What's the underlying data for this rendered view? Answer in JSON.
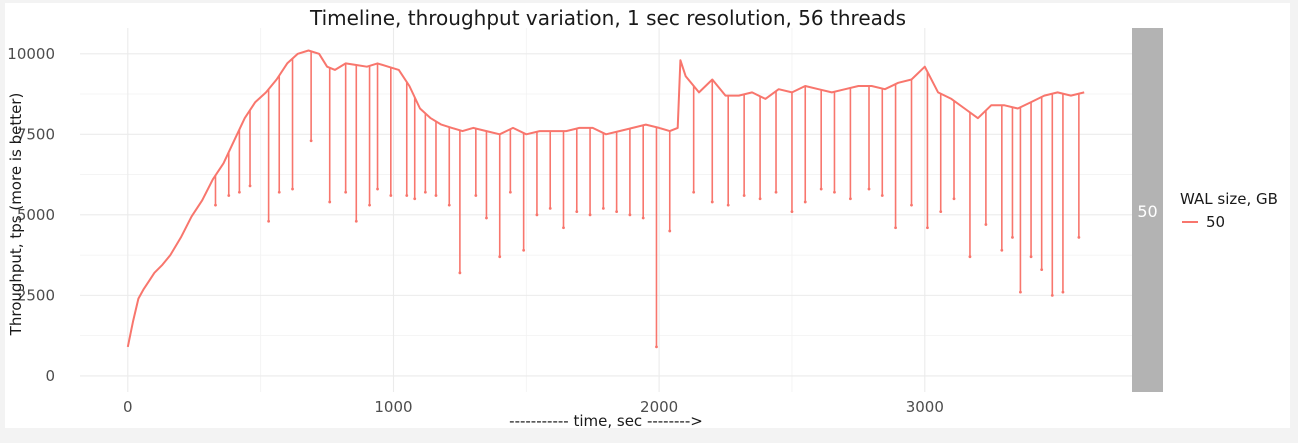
{
  "chart_data": {
    "type": "line",
    "title": "Timeline, throughput variation, 1 sec resolution, 56 threads",
    "xlabel": "----------- time, sec -------->",
    "ylabel": "Throughput, tps (more is better)",
    "xlim": [
      -180,
      3780
    ],
    "ylim": [
      -500,
      10800
    ],
    "x_ticks": [
      0,
      1000,
      2000,
      3000
    ],
    "x_tick_labels": [
      "0",
      "1000",
      "2000",
      "3000"
    ],
    "y_ticks": [
      0,
      2500,
      5000,
      7500,
      10000
    ],
    "y_tick_labels": [
      "0",
      "2500",
      "5000",
      "7500",
      "10000"
    ],
    "grid": true,
    "legend": {
      "title": "WAL size, GB",
      "position": "right",
      "entries": [
        "50"
      ]
    },
    "facet_label": "50",
    "color": "#f8766d",
    "series": [
      {
        "name": "50",
        "x": [
          0,
          20,
          40,
          60,
          80,
          100,
          130,
          160,
          200,
          240,
          280,
          320,
          360,
          400,
          440,
          480,
          520,
          560,
          600,
          640,
          680,
          720,
          750,
          780,
          820,
          860,
          900,
          940,
          980,
          1020,
          1060,
          1100,
          1140,
          1180,
          1220,
          1260,
          1300,
          1350,
          1400,
          1450,
          1500,
          1550,
          1600,
          1650,
          1700,
          1750,
          1800,
          1850,
          1900,
          1950,
          2000,
          2040,
          2070,
          2080,
          2100,
          2150,
          2200,
          2250,
          2300,
          2350,
          2400,
          2450,
          2500,
          2550,
          2600,
          2650,
          2700,
          2750,
          2800,
          2850,
          2900,
          2950,
          3000,
          3050,
          3100,
          3150,
          3200,
          3250,
          3300,
          3350,
          3400,
          3450,
          3500,
          3550,
          3600
        ],
        "y": [
          900,
          1700,
          2400,
          2700,
          2950,
          3200,
          3450,
          3750,
          4300,
          4950,
          5450,
          6100,
          6600,
          7300,
          8000,
          8500,
          8800,
          9200,
          9700,
          10000,
          10100,
          10000,
          9600,
          9500,
          9700,
          9650,
          9600,
          9700,
          9600,
          9500,
          9000,
          8300,
          8000,
          7800,
          7700,
          7600,
          7700,
          7600,
          7500,
          7700,
          7500,
          7600,
          7600,
          7600,
          7700,
          7700,
          7500,
          7600,
          7700,
          7800,
          7700,
          7600,
          7700,
          9800,
          9300,
          8800,
          9200,
          8700,
          8700,
          8800,
          8600,
          8900,
          8800,
          9000,
          8900,
          8800,
          8900,
          9000,
          9000,
          8900,
          9100,
          9200,
          9600,
          8800,
          8600,
          8300,
          8000,
          8400,
          8400,
          8300,
          8500,
          8700,
          8800,
          8700,
          8800
        ]
      }
    ],
    "dips": {
      "x": [
        330,
        380,
        420,
        460,
        530,
        570,
        620,
        690,
        760,
        820,
        860,
        910,
        940,
        990,
        1050,
        1080,
        1120,
        1160,
        1210,
        1250,
        1310,
        1350,
        1400,
        1440,
        1490,
        1540,
        1590,
        1640,
        1690,
        1740,
        1790,
        1840,
        1890,
        1940,
        1990,
        2040,
        2130,
        2200,
        2260,
        2320,
        2380,
        2440,
        2500,
        2550,
        2610,
        2660,
        2720,
        2790,
        2840,
        2890,
        2950,
        3010,
        3060,
        3110,
        3170,
        3230,
        3290,
        3330,
        3360,
        3400,
        3440,
        3480,
        3520,
        3580
      ],
      "y": [
        5300,
        5600,
        5700,
        5900,
        4800,
        5700,
        5800,
        7300,
        5400,
        5700,
        4800,
        5300,
        5800,
        5600,
        5600,
        5500,
        5700,
        5600,
        5300,
        3200,
        5600,
        4900,
        3700,
        5700,
        3900,
        5000,
        5200,
        4600,
        5100,
        5000,
        5200,
        5100,
        5000,
        4900,
        900,
        4500,
        5700,
        5400,
        5300,
        5600,
        5500,
        5700,
        5100,
        5400,
        5800,
        5700,
        5500,
        5800,
        5600,
        4600,
        5300,
        4600,
        5100,
        5500,
        3700,
        4700,
        3900,
        4300,
        2600,
        3700,
        3300,
        2500,
        2600,
        4300
      ]
    }
  }
}
